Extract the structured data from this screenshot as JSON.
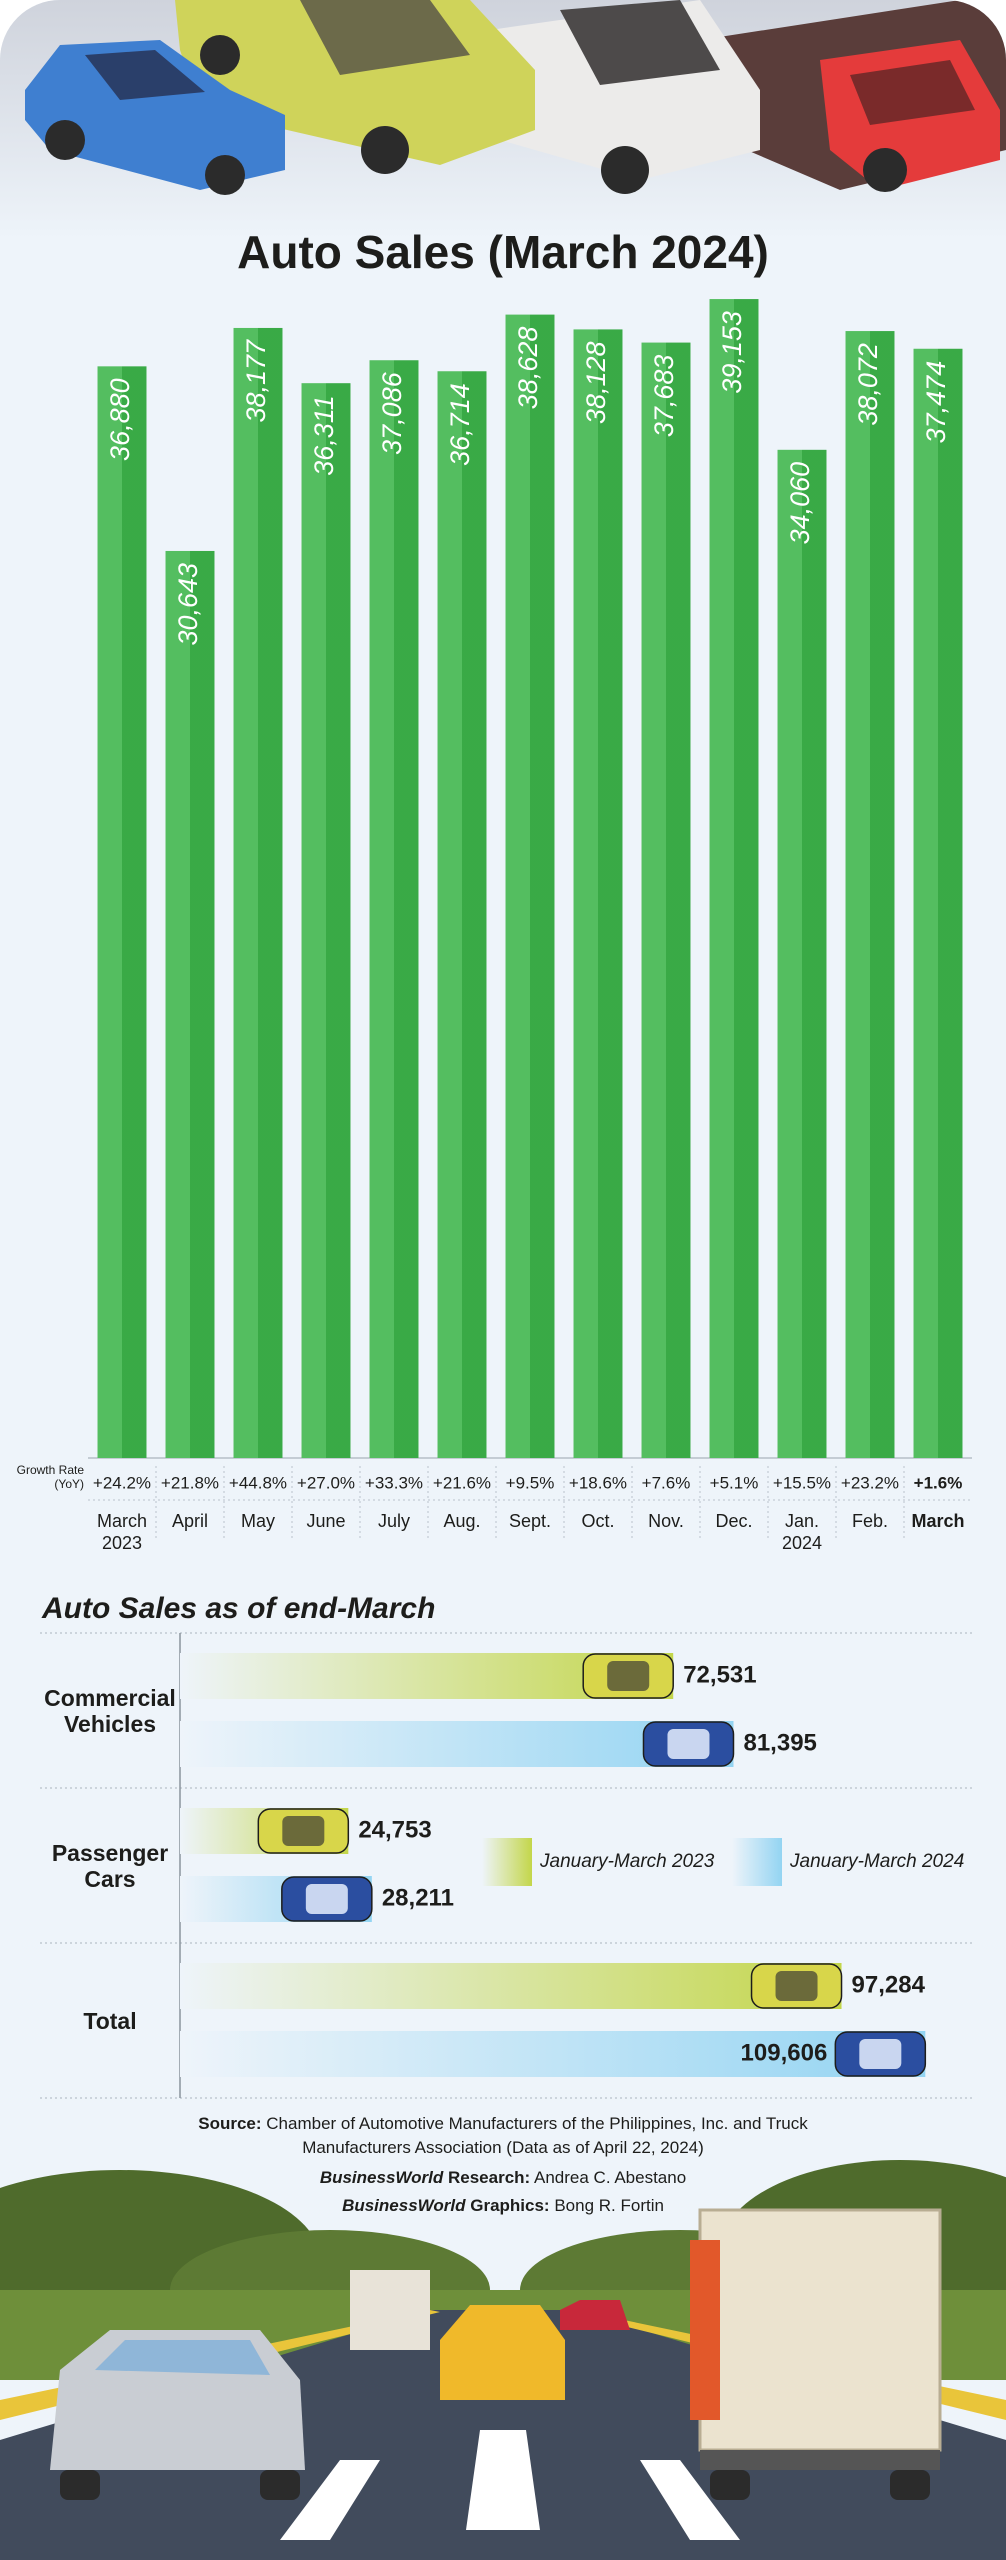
{
  "chart_data": [
    {
      "type": "bar",
      "title": "Auto Sales (March 2024)",
      "categories": [
        "March 2023",
        "April",
        "May",
        "June",
        "July",
        "Aug.",
        "Sept.",
        "Oct.",
        "Nov.",
        "Dec.",
        "Jan. 2024",
        "Feb.",
        "March"
      ],
      "values": [
        36880,
        30643,
        38177,
        36311,
        37086,
        36714,
        38628,
        38128,
        37683,
        39153,
        34060,
        38072,
        37474
      ],
      "value_labels": [
        "36,880",
        "30,643",
        "38,177",
        "36,311",
        "37,086",
        "36,714",
        "38,628",
        "38,128",
        "37,683",
        "39,153",
        "34,060",
        "38,072",
        "37,474"
      ],
      "color": "#3db54a",
      "ylim": [
        0,
        40000
      ],
      "growth_label": "Growth Rate (YoY)",
      "growth_rates": [
        "+24.2%",
        "+21.8%",
        "+44.8%",
        "+27.0%",
        "+33.3%",
        "+21.6%",
        "+9.5%",
        "+18.6%",
        "+7.6%",
        "+5.1%",
        "+15.5%",
        "+23.2%",
        "+1.6%"
      ]
    },
    {
      "type": "hbar",
      "title": "Auto Sales as of end-March",
      "categories": [
        "Commercial Vehicles",
        "Passenger Cars",
        "Total"
      ],
      "series": [
        {
          "name": "January-March 2023",
          "color": "#c3d64a",
          "values": [
            72531,
            24753,
            97284
          ],
          "value_labels": [
            "72,531",
            "24,753",
            "97,284"
          ]
        },
        {
          "name": "January-March 2024",
          "color": "#93d4f2",
          "values": [
            81395,
            28211,
            109606
          ],
          "value_labels": [
            "81,395",
            "28,211",
            "109,606"
          ]
        }
      ],
      "xlim": [
        0,
        120000
      ],
      "legend": "right"
    }
  ],
  "notes": {
    "source": {
      "label": "Source:",
      "text": "Chamber of Automotive Manufacturers of the Philippines, Inc. and Truck Manufacturers Association (Data as of April 22, 2024)"
    },
    "research": {
      "brand": "BusinessWorld",
      "role": "Research:",
      "name": "Andrea C. Abestano"
    },
    "graphics": {
      "brand": "BusinessWorld",
      "role": "Graphics:",
      "name": "Bong R. Fortin"
    }
  }
}
